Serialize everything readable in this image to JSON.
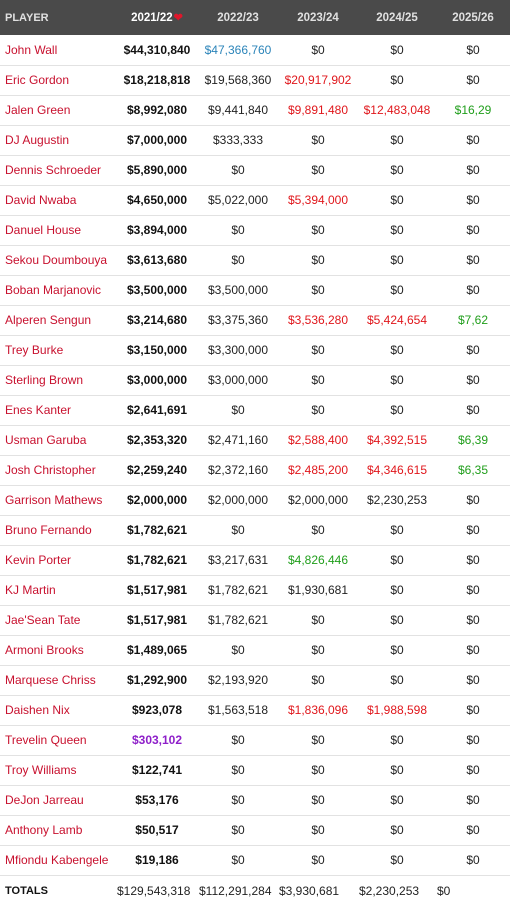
{
  "header": {
    "player": "PLAYER",
    "seasons": [
      "2021/22",
      "2022/23",
      "2023/24",
      "2024/25",
      "2025/26"
    ],
    "sort_arrow": "❤"
  },
  "colors": {
    "red": "#e0161b",
    "green": "#209e1b",
    "blue": "#2b84b9",
    "purple": "#8e1fc9",
    "player_link": "#c8102e"
  },
  "rows": [
    {
      "player": "John Wall",
      "c": [
        "$44,310,840",
        "$47,366,760",
        "$0",
        "$0",
        "$0"
      ],
      "s": [
        "plain",
        "blue",
        "plain",
        "plain",
        "plain"
      ]
    },
    {
      "player": "Eric Gordon",
      "c": [
        "$18,218,818",
        "$19,568,360",
        "$20,917,902",
        "$0",
        "$0"
      ],
      "s": [
        "plain",
        "plain",
        "red",
        "plain",
        "plain"
      ]
    },
    {
      "player": "Jalen Green",
      "c": [
        "$8,992,080",
        "$9,441,840",
        "$9,891,480",
        "$12,483,048",
        "$16,29"
      ],
      "s": [
        "plain",
        "plain",
        "red",
        "red",
        "green"
      ]
    },
    {
      "player": "DJ Augustin",
      "c": [
        "$7,000,000",
        "$333,333",
        "$0",
        "$0",
        "$0"
      ],
      "s": [
        "plain",
        "plain",
        "plain",
        "plain",
        "plain"
      ]
    },
    {
      "player": "Dennis Schroeder",
      "c": [
        "$5,890,000",
        "$0",
        "$0",
        "$0",
        "$0"
      ],
      "s": [
        "plain",
        "plain",
        "plain",
        "plain",
        "plain"
      ]
    },
    {
      "player": "David Nwaba",
      "c": [
        "$4,650,000",
        "$5,022,000",
        "$5,394,000",
        "$0",
        "$0"
      ],
      "s": [
        "plain",
        "plain",
        "red",
        "plain",
        "plain"
      ]
    },
    {
      "player": "Danuel House",
      "c": [
        "$3,894,000",
        "$0",
        "$0",
        "$0",
        "$0"
      ],
      "s": [
        "plain",
        "plain",
        "plain",
        "plain",
        "plain"
      ]
    },
    {
      "player": "Sekou Doumbouya",
      "c": [
        "$3,613,680",
        "$0",
        "$0",
        "$0",
        "$0"
      ],
      "s": [
        "plain",
        "plain",
        "plain",
        "plain",
        "plain"
      ]
    },
    {
      "player": "Boban Marjanovic",
      "c": [
        "$3,500,000",
        "$3,500,000",
        "$0",
        "$0",
        "$0"
      ],
      "s": [
        "plain",
        "plain",
        "plain",
        "plain",
        "plain"
      ]
    },
    {
      "player": "Alperen Sengun",
      "c": [
        "$3,214,680",
        "$3,375,360",
        "$3,536,280",
        "$5,424,654",
        "$7,62"
      ],
      "s": [
        "plain",
        "plain",
        "red",
        "red",
        "green"
      ]
    },
    {
      "player": "Trey Burke",
      "c": [
        "$3,150,000",
        "$3,300,000",
        "$0",
        "$0",
        "$0"
      ],
      "s": [
        "plain",
        "plain",
        "plain",
        "plain",
        "plain"
      ]
    },
    {
      "player": "Sterling Brown",
      "c": [
        "$3,000,000",
        "$3,000,000",
        "$0",
        "$0",
        "$0"
      ],
      "s": [
        "plain",
        "plain",
        "plain",
        "plain",
        "plain"
      ]
    },
    {
      "player": "Enes Kanter",
      "c": [
        "$2,641,691",
        "$0",
        "$0",
        "$0",
        "$0"
      ],
      "s": [
        "plain",
        "plain",
        "plain",
        "plain",
        "plain"
      ]
    },
    {
      "player": "Usman Garuba",
      "c": [
        "$2,353,320",
        "$2,471,160",
        "$2,588,400",
        "$4,392,515",
        "$6,39"
      ],
      "s": [
        "plain",
        "plain",
        "red",
        "red",
        "green"
      ]
    },
    {
      "player": "Josh Christopher",
      "c": [
        "$2,259,240",
        "$2,372,160",
        "$2,485,200",
        "$4,346,615",
        "$6,35"
      ],
      "s": [
        "plain",
        "plain",
        "red",
        "red",
        "green"
      ]
    },
    {
      "player": "Garrison Mathews",
      "c": [
        "$2,000,000",
        "$2,000,000",
        "$2,000,000",
        "$2,230,253",
        "$0"
      ],
      "s": [
        "plain",
        "plain",
        "plain",
        "plain",
        "plain"
      ]
    },
    {
      "player": "Bruno Fernando",
      "c": [
        "$1,782,621",
        "$0",
        "$0",
        "$0",
        "$0"
      ],
      "s": [
        "plain",
        "plain",
        "plain",
        "plain",
        "plain"
      ]
    },
    {
      "player": "Kevin Porter",
      "c": [
        "$1,782,621",
        "$3,217,631",
        "$4,826,446",
        "$0",
        "$0"
      ],
      "s": [
        "plain",
        "plain",
        "green",
        "plain",
        "plain"
      ]
    },
    {
      "player": "KJ Martin",
      "c": [
        "$1,517,981",
        "$1,782,621",
        "$1,930,681",
        "$0",
        "$0"
      ],
      "s": [
        "plain",
        "plain",
        "plain",
        "plain",
        "plain"
      ]
    },
    {
      "player": "Jae'Sean Tate",
      "c": [
        "$1,517,981",
        "$1,782,621",
        "$0",
        "$0",
        "$0"
      ],
      "s": [
        "plain",
        "plain",
        "plain",
        "plain",
        "plain"
      ]
    },
    {
      "player": "Armoni Brooks",
      "c": [
        "$1,489,065",
        "$0",
        "$0",
        "$0",
        "$0"
      ],
      "s": [
        "plain",
        "plain",
        "plain",
        "plain",
        "plain"
      ]
    },
    {
      "player": "Marquese Chriss",
      "c": [
        "$1,292,900",
        "$2,193,920",
        "$0",
        "$0",
        "$0"
      ],
      "s": [
        "plain",
        "plain",
        "plain",
        "plain",
        "plain"
      ]
    },
    {
      "player": "Daishen Nix",
      "c": [
        "$923,078",
        "$1,563,518",
        "$1,836,096",
        "$1,988,598",
        "$0"
      ],
      "s": [
        "plain",
        "plain",
        "red",
        "red",
        "plain"
      ]
    },
    {
      "player": "Trevelin Queen",
      "c": [
        "$303,102",
        "$0",
        "$0",
        "$0",
        "$0"
      ],
      "s": [
        "purple",
        "plain",
        "plain",
        "plain",
        "plain"
      ]
    },
    {
      "player": "Troy Williams",
      "c": [
        "$122,741",
        "$0",
        "$0",
        "$0",
        "$0"
      ],
      "s": [
        "plain",
        "plain",
        "plain",
        "plain",
        "plain"
      ]
    },
    {
      "player": "DeJon Jarreau",
      "c": [
        "$53,176",
        "$0",
        "$0",
        "$0",
        "$0"
      ],
      "s": [
        "plain",
        "plain",
        "plain",
        "plain",
        "plain"
      ]
    },
    {
      "player": "Anthony Lamb",
      "c": [
        "$50,517",
        "$0",
        "$0",
        "$0",
        "$0"
      ],
      "s": [
        "plain",
        "plain",
        "plain",
        "plain",
        "plain"
      ]
    },
    {
      "player": "Mfiondu Kabengele",
      "c": [
        "$19,186",
        "$0",
        "$0",
        "$0",
        "$0"
      ],
      "s": [
        "plain",
        "plain",
        "plain",
        "plain",
        "plain"
      ]
    }
  ],
  "totals": {
    "label": "TOTALS",
    "c": [
      "$129,543,318",
      "$112,291,284",
      "$3,930,681",
      "$2,230,253",
      "$0"
    ]
  }
}
